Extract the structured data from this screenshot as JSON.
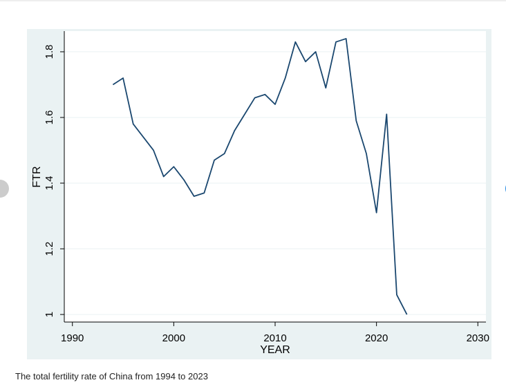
{
  "chart_data": {
    "type": "line",
    "x_label": "YEAR",
    "y_label": "FTR",
    "x": [
      1994,
      1995,
      1996,
      1997,
      1998,
      1999,
      2000,
      2001,
      2002,
      2003,
      2004,
      2005,
      2006,
      2007,
      2008,
      2009,
      2010,
      2011,
      2012,
      2013,
      2014,
      2015,
      2016,
      2017,
      2018,
      2019,
      2020,
      2021,
      2022,
      2023
    ],
    "series": [
      {
        "name": "FTR",
        "color": "#1a476f",
        "values": [
          1.7,
          1.72,
          1.58,
          1.54,
          1.5,
          1.42,
          1.45,
          1.41,
          1.36,
          1.37,
          1.47,
          1.49,
          1.56,
          1.61,
          1.66,
          1.67,
          1.64,
          1.72,
          1.83,
          1.77,
          1.8,
          1.69,
          1.83,
          1.84,
          1.59,
          1.49,
          1.31,
          1.61,
          1.06,
          1.0
        ]
      }
    ],
    "xlim": [
      1989.2,
      2030.8
    ],
    "ylim": [
      0.977,
      1.863
    ],
    "xticks": [
      1990,
      2000,
      2010,
      2020,
      2030
    ],
    "yticks": [
      1,
      1.2,
      1.4,
      1.6,
      1.8
    ],
    "grid": true
  },
  "caption": "The total fertility rate of China from 1994 to 2023"
}
